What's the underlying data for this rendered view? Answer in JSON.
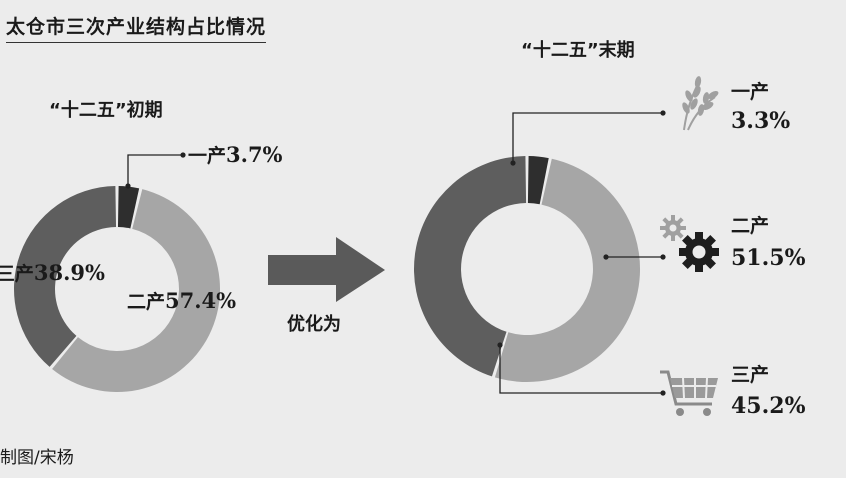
{
  "title": "太仓市三次产业结构占比情况",
  "credit": "制图/宋杨",
  "arrow_label": "优化为",
  "chart_data": [
    {
      "type": "pie",
      "title": "“十二五”初期",
      "categories": [
        "一产",
        "二产",
        "三产"
      ],
      "values": [
        3.7,
        57.4,
        38.9
      ],
      "value_labels": [
        "3.7%",
        "57.4%",
        "38.9%"
      ],
      "colors": [
        "#2e2e2e",
        "#a6a6a6",
        "#5e5e5e"
      ]
    },
    {
      "type": "pie",
      "title": "“十二五”末期",
      "categories": [
        "一产",
        "二产",
        "三产"
      ],
      "values": [
        3.3,
        51.5,
        45.2
      ],
      "value_labels": [
        "3.3%",
        "51.5%",
        "45.2%"
      ],
      "colors": [
        "#2e2e2e",
        "#a6a6a6",
        "#5e5e5e"
      ]
    }
  ],
  "icons": [
    "wheat-icon",
    "gears-icon",
    "shopping-cart-icon"
  ]
}
